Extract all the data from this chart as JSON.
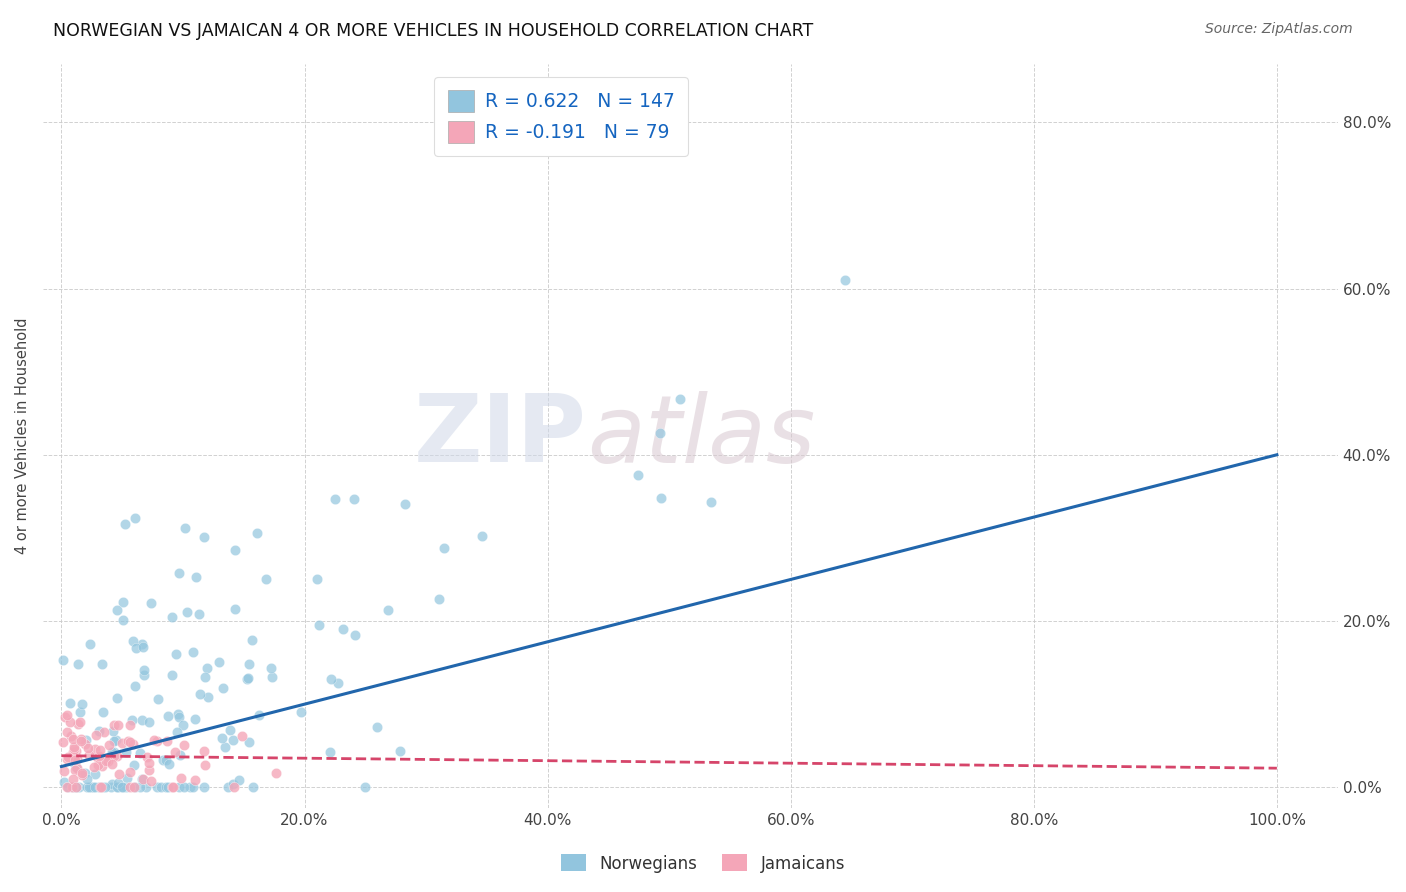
{
  "title": "NORWEGIAN VS JAMAICAN 4 OR MORE VEHICLES IN HOUSEHOLD CORRELATION CHART",
  "source": "Source: ZipAtlas.com",
  "ylabel": "4 or more Vehicles in Household",
  "legend_label1": "Norwegians",
  "legend_label2": "Jamaicans",
  "R1": 0.622,
  "N1": 147,
  "R2": -0.191,
  "N2": 79,
  "blue_color": "#92c5de",
  "pink_color": "#f4a6b8",
  "line_blue": "#2166ac",
  "line_pink": "#d6456a",
  "bg_color": "#ffffff",
  "grid_color": "#cccccc",
  "watermark_zip": "ZIP",
  "watermark_atlas": "atlas",
  "x_tick_vals": [
    0.0,
    0.2,
    0.4,
    0.6,
    0.8,
    1.0
  ],
  "x_tick_labels": [
    "0.0%",
    "20.0%",
    "40.0%",
    "60.0%",
    "80.0%",
    "100.0%"
  ],
  "y_tick_vals": [
    0.0,
    0.2,
    0.4,
    0.6,
    0.8
  ],
  "y_tick_labels": [
    "0.0%",
    "20.0%",
    "40.0%",
    "60.0%",
    "80.0%"
  ],
  "xlim": [
    -0.015,
    1.05
  ],
  "ylim": [
    -0.025,
    0.87
  ]
}
